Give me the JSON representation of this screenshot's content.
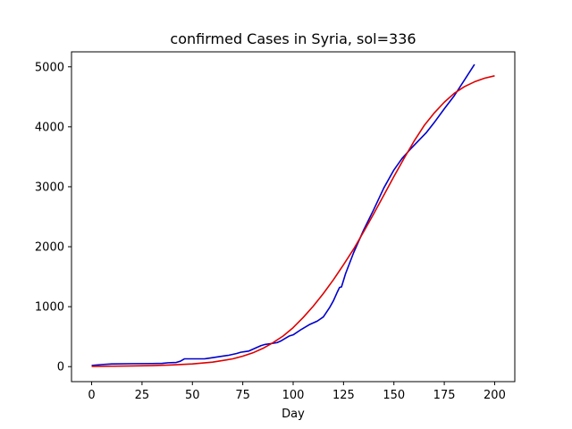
{
  "chart_data": {
    "type": "line",
    "title": "confirmed Cases in Syria, sol=336",
    "xlabel": "Day",
    "ylabel": "",
    "xlim": [
      -10,
      210
    ],
    "ylim": [
      -250,
      5250
    ],
    "xticks": [
      0,
      25,
      50,
      75,
      100,
      125,
      150,
      175,
      200
    ],
    "yticks": [
      0,
      1000,
      2000,
      3000,
      4000,
      5000
    ],
    "grid": false,
    "legend": "none",
    "series": [
      {
        "color": "#0000cc",
        "x": [
          0,
          5,
          10,
          20,
          30,
          35,
          38,
          42,
          44,
          46,
          50,
          53,
          56,
          57,
          60,
          64,
          68,
          72,
          74,
          76,
          78,
          80,
          82,
          84,
          86,
          88,
          90,
          92,
          94,
          96,
          98,
          100,
          104,
          108,
          112,
          115,
          118,
          120,
          122,
          123,
          124,
          126,
          130,
          135,
          140,
          145,
          150,
          154,
          158,
          162,
          166,
          170,
          175,
          180,
          185,
          190
        ],
        "y": [
          20,
          35,
          45,
          50,
          52,
          55,
          65,
          70,
          90,
          130,
          130,
          130,
          130,
          135,
          150,
          170,
          190,
          220,
          240,
          250,
          260,
          290,
          320,
          350,
          370,
          380,
          390,
          400,
          430,
          470,
          510,
          530,
          620,
          700,
          760,
          830,
          980,
          1100,
          1250,
          1320,
          1330,
          1550,
          1900,
          2280,
          2620,
          2980,
          3280,
          3470,
          3620,
          3760,
          3900,
          4070,
          4300,
          4520,
          4780,
          5040
        ]
      },
      {
        "color": "#dd0000",
        "x": [
          0,
          10,
          20,
          30,
          40,
          50,
          60,
          70,
          75,
          80,
          85,
          90,
          95,
          100,
          105,
          110,
          115,
          120,
          125,
          130,
          135,
          140,
          145,
          150,
          155,
          160,
          165,
          170,
          175,
          180,
          185,
          190,
          195,
          200
        ],
        "y": [
          5,
          8,
          12,
          18,
          28,
          45,
          75,
          130,
          175,
          230,
          305,
          400,
          510,
          650,
          820,
          1010,
          1220,
          1450,
          1700,
          1960,
          2250,
          2550,
          2860,
          3170,
          3470,
          3760,
          4020,
          4230,
          4410,
          4560,
          4670,
          4750,
          4810,
          4850
        ]
      }
    ]
  }
}
